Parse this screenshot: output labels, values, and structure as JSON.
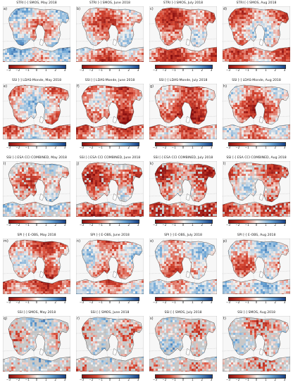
{
  "colors": {
    "dry_dark": "#8b1010",
    "dry": "#d94a35",
    "neutral": "#f4f1ee",
    "wet": "#6aa5d6",
    "wet_dark": "#153f86",
    "no_data": "#c8c8c8",
    "sea": "#ffffff"
  },
  "colorbar_ticks": [
    "−3",
    "−2",
    "−1",
    "0",
    "1",
    "2",
    "3"
  ],
  "panels": [
    {
      "letter": "a)",
      "title": "STRI [-] SMOS, May 2018",
      "bias": 0.1
    },
    {
      "letter": "b)",
      "title": "STRI [-] SMOS, June 2018",
      "bias": -0.6
    },
    {
      "letter": "c)",
      "title": "STRI [-] SMOS, July 2018",
      "bias": -0.8
    },
    {
      "letter": "d)",
      "title": "STRI [-] SMOS, Aug 2018",
      "bias": -0.5
    },
    {
      "letter": "e)",
      "title": "SSI [-] LDAS-Monde, May 2018",
      "bias": -0.3
    },
    {
      "letter": "f)",
      "title": "SSI [-] LDAS-Monde, June 2018",
      "bias": -1.2
    },
    {
      "letter": "g)",
      "title": "SSI [-] LDAS-Monde, July 2018",
      "bias": -1.4
    },
    {
      "letter": "h)",
      "title": "SSI [-] LDAS-Monde, Aug 2018",
      "bias": -0.9
    },
    {
      "letter": "i)",
      "title": "SSI [-] ESA CCI COMBINED, May 2018",
      "bias": -0.4
    },
    {
      "letter": "j)",
      "title": "SSI [-] ESA CCI COMBINED, June 2018",
      "bias": -1.0
    },
    {
      "letter": "k)",
      "title": "SSI [-] ESA CCI COMBINED, July 2018",
      "bias": -1.1
    },
    {
      "letter": "l)",
      "title": "SSI [-] ESA CCI COMBINED, Aug 2018",
      "bias": -0.7
    },
    {
      "letter": "m)",
      "title": "SPI [-] E-OBS, May 2018",
      "bias": -0.9
    },
    {
      "letter": "n)",
      "title": "SPI [-] E-OBS, June 2018",
      "bias": -0.6
    },
    {
      "letter": "o)",
      "title": "SPI [-] E-OBS, July 2018",
      "bias": -0.4
    },
    {
      "letter": "p)",
      "title": "SPI [-] E-OBS, Aug 2018",
      "bias": -0.2
    },
    {
      "letter": "q)",
      "title": "SSI [-] SMOS, May 2018",
      "bias": 0.0
    },
    {
      "letter": "r)",
      "title": "SSI [-] SMOS, June 2018",
      "bias": -0.2
    },
    {
      "letter": "s)",
      "title": "SSI [-] SMOS, July 2018",
      "bias": -0.1
    },
    {
      "letter": "t)",
      "title": "SSI [-] SMOS, Aug 2018",
      "bias": -0.3
    }
  ]
}
